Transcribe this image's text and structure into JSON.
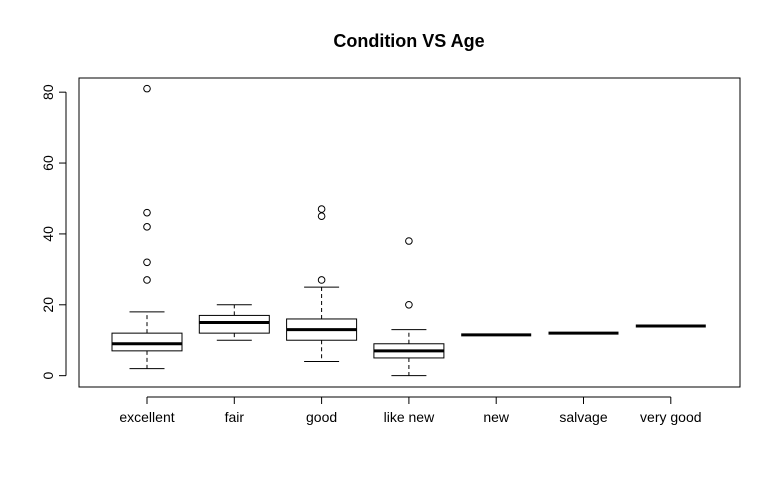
{
  "chart_data": {
    "type": "boxplot",
    "title": "Condition VS Age",
    "xlabel": "",
    "ylabel": "",
    "categories": [
      "excellent",
      "fair",
      "good",
      "like new",
      "new",
      "salvage",
      "very good"
    ],
    "yticks": [
      0,
      20,
      40,
      60,
      80
    ],
    "ylim": [
      -3.2,
      84
    ],
    "grid": false,
    "boxes": [
      {
        "whisker_low": 2,
        "q1": 7,
        "median": 9,
        "q3": 12,
        "whisker_high": 18,
        "outliers": [
          27,
          32,
          42,
          46,
          81
        ]
      },
      {
        "whisker_low": 10,
        "q1": 12,
        "median": 15,
        "q3": 17,
        "whisker_high": 20,
        "outliers": []
      },
      {
        "whisker_low": 4,
        "q1": 10,
        "median": 13,
        "q3": 16,
        "whisker_high": 25,
        "outliers": [
          27,
          45,
          47
        ]
      },
      {
        "whisker_low": 0,
        "q1": 5,
        "median": 7,
        "q3": 9,
        "whisker_high": 13,
        "outliers": [
          20,
          38
        ]
      },
      {
        "whisker_low": 11.5,
        "q1": 11.5,
        "median": 11.5,
        "q3": 11.5,
        "whisker_high": 11.5,
        "outliers": []
      },
      {
        "whisker_low": 12,
        "q1": 12,
        "median": 12,
        "q3": 12,
        "whisker_high": 12,
        "outliers": []
      },
      {
        "whisker_low": 14,
        "q1": 14,
        "median": 14,
        "q3": 14,
        "whisker_high": 14,
        "outliers": []
      }
    ]
  }
}
